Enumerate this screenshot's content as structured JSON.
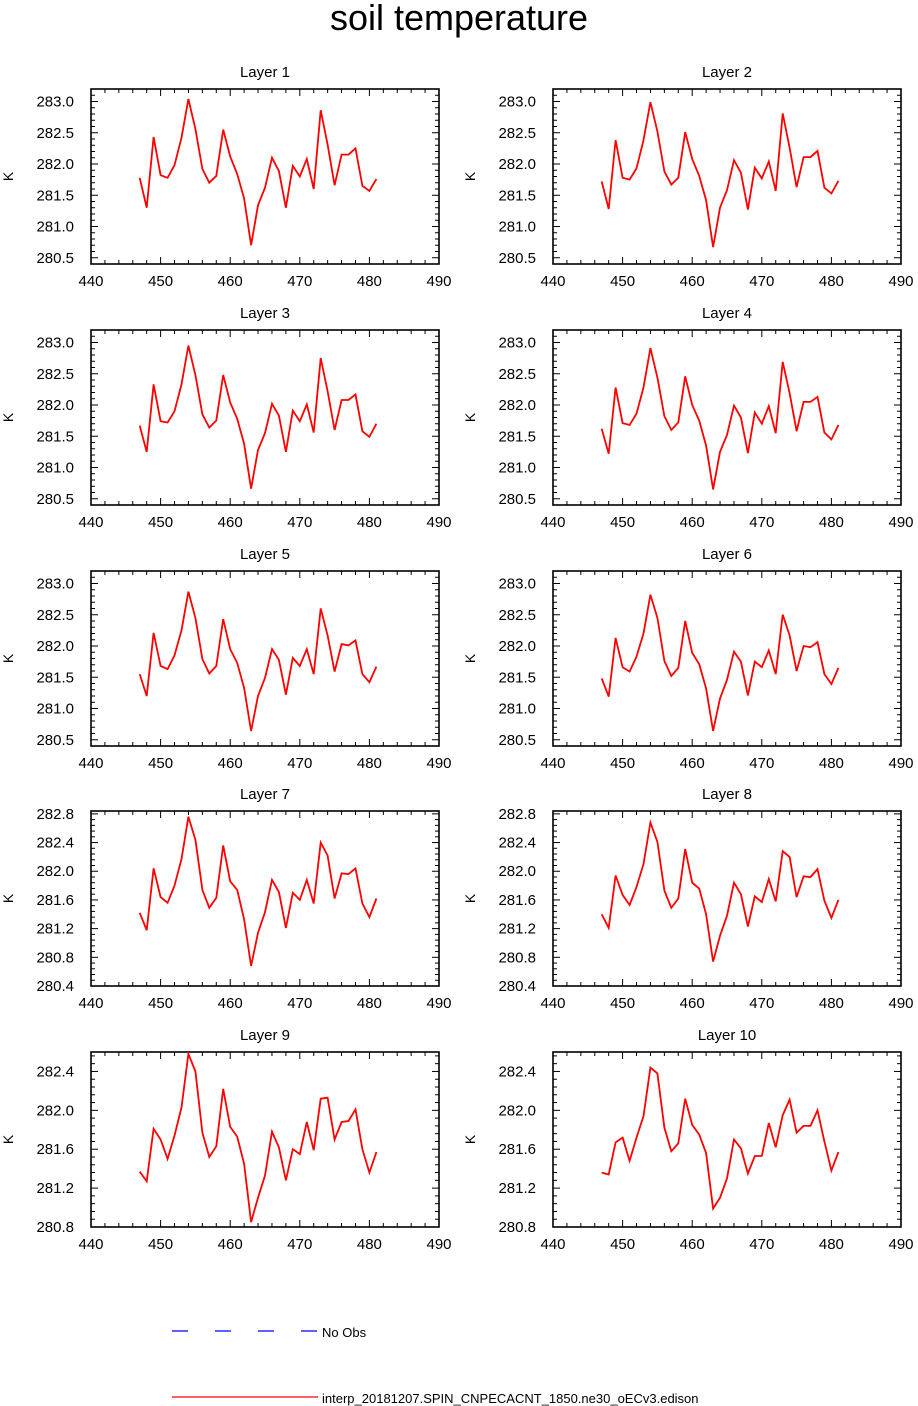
{
  "title": "soil temperature",
  "colors": {
    "model": "#ff0000",
    "obs": "#0000ff",
    "axis": "#000000"
  },
  "legend": {
    "obs_label": "No Obs",
    "model_label": "interp_20181207.SPIN_CNPECACNT_1850.ne30_oECv3.edison"
  },
  "chart_data": [
    {
      "type": "line",
      "title": "Layer 1",
      "ylabel": "K",
      "xlim": [
        440,
        490
      ],
      "ylim": [
        280.4,
        283.2
      ],
      "xticks": [
        440,
        450,
        460,
        470,
        480,
        490
      ],
      "yticks": [
        280.5,
        281.0,
        281.5,
        282.0,
        282.5,
        283.0
      ],
      "ytick_decimals": 1,
      "x": [
        447,
        448,
        449,
        450,
        451,
        452,
        453,
        454,
        455,
        456,
        457,
        458,
        459,
        460,
        461,
        462,
        463,
        464,
        465,
        466,
        467,
        468,
        469,
        470,
        471,
        472,
        473,
        474,
        475,
        476,
        477,
        478,
        479,
        480,
        481
      ],
      "series": [
        {
          "name": "interp_20181207.SPIN_CNPECACNT_1850.ne30_oECv3.edison",
          "values": [
            281.78,
            281.3,
            282.43,
            281.82,
            281.78,
            281.98,
            282.42,
            283.04,
            282.56,
            281.92,
            281.7,
            281.81,
            282.55,
            282.12,
            281.84,
            281.45,
            280.7,
            281.34,
            281.62,
            282.1,
            281.89,
            281.3,
            281.97,
            281.8,
            282.08,
            281.6,
            282.86,
            282.31,
            281.66,
            282.15,
            282.15,
            282.25,
            281.65,
            281.57,
            281.76
          ]
        }
      ]
    },
    {
      "type": "line",
      "title": "Layer 2",
      "ylabel": "K",
      "xlim": [
        440,
        490
      ],
      "ylim": [
        280.4,
        283.2
      ],
      "xticks": [
        440,
        450,
        460,
        470,
        480,
        490
      ],
      "yticks": [
        280.5,
        281.0,
        281.5,
        282.0,
        282.5,
        283.0
      ],
      "ytick_decimals": 1,
      "x": [
        447,
        448,
        449,
        450,
        451,
        452,
        453,
        454,
        455,
        456,
        457,
        458,
        459,
        460,
        461,
        462,
        463,
        464,
        465,
        466,
        467,
        468,
        469,
        470,
        471,
        472,
        473,
        474,
        475,
        476,
        477,
        478,
        479,
        480,
        481
      ],
      "series": [
        {
          "name": "interp_20181207.SPIN_CNPECACNT_1850.ne30_oECv3.edison",
          "values": [
            281.72,
            281.28,
            282.38,
            281.78,
            281.75,
            281.93,
            282.38,
            282.99,
            282.52,
            281.88,
            281.67,
            281.78,
            282.51,
            282.08,
            281.81,
            281.42,
            280.67,
            281.3,
            281.58,
            282.06,
            281.86,
            281.27,
            281.94,
            281.77,
            282.04,
            281.57,
            282.81,
            282.26,
            281.63,
            282.11,
            282.11,
            282.21,
            281.62,
            281.53,
            281.73
          ]
        }
      ]
    },
    {
      "type": "line",
      "title": "Layer 3",
      "ylabel": "K",
      "xlim": [
        440,
        490
      ],
      "ylim": [
        280.4,
        283.2
      ],
      "xticks": [
        440,
        450,
        460,
        470,
        480,
        490
      ],
      "yticks": [
        280.5,
        281.0,
        281.5,
        282.0,
        282.5,
        283.0
      ],
      "ytick_decimals": 1,
      "x": [
        447,
        448,
        449,
        450,
        451,
        452,
        453,
        454,
        455,
        456,
        457,
        458,
        459,
        460,
        461,
        462,
        463,
        464,
        465,
        466,
        467,
        468,
        469,
        470,
        471,
        472,
        473,
        474,
        475,
        476,
        477,
        478,
        479,
        480,
        481
      ],
      "series": [
        {
          "name": "interp_20181207.SPIN_CNPECACNT_1850.ne30_oECv3.edison",
          "values": [
            281.67,
            281.25,
            282.33,
            281.74,
            281.72,
            281.9,
            282.33,
            282.95,
            282.48,
            281.85,
            281.64,
            281.75,
            282.48,
            282.04,
            281.78,
            281.38,
            280.66,
            281.28,
            281.55,
            282.02,
            281.83,
            281.25,
            281.91,
            281.74,
            282.01,
            281.56,
            282.75,
            282.22,
            281.6,
            282.08,
            282.08,
            282.17,
            281.58,
            281.49,
            281.7
          ]
        }
      ]
    },
    {
      "type": "line",
      "title": "Layer 4",
      "ylabel": "K",
      "xlim": [
        440,
        490
      ],
      "ylim": [
        280.4,
        283.2
      ],
      "xticks": [
        440,
        450,
        460,
        470,
        480,
        490
      ],
      "yticks": [
        280.5,
        281.0,
        281.5,
        282.0,
        282.5,
        283.0
      ],
      "ytick_decimals": 1,
      "x": [
        447,
        448,
        449,
        450,
        451,
        452,
        453,
        454,
        455,
        456,
        457,
        458,
        459,
        460,
        461,
        462,
        463,
        464,
        465,
        466,
        467,
        468,
        469,
        470,
        471,
        472,
        473,
        474,
        475,
        476,
        477,
        478,
        479,
        480,
        481
      ],
      "series": [
        {
          "name": "interp_20181207.SPIN_CNPECACNT_1850.ne30_oECv3.edison",
          "values": [
            281.62,
            281.22,
            282.28,
            281.71,
            281.68,
            281.86,
            282.28,
            282.91,
            282.44,
            281.82,
            281.6,
            281.72,
            282.46,
            282.0,
            281.75,
            281.35,
            280.65,
            281.25,
            281.52,
            281.99,
            281.8,
            281.23,
            281.88,
            281.7,
            281.98,
            281.55,
            282.69,
            282.19,
            281.58,
            282.05,
            282.05,
            282.13,
            281.56,
            281.45,
            281.68
          ]
        }
      ]
    },
    {
      "type": "line",
      "title": "Layer 5",
      "ylabel": "K",
      "xlim": [
        440,
        490
      ],
      "ylim": [
        280.4,
        283.2
      ],
      "xticks": [
        440,
        450,
        460,
        470,
        480,
        490
      ],
      "yticks": [
        280.5,
        281.0,
        281.5,
        282.0,
        282.5,
        283.0
      ],
      "ytick_decimals": 1,
      "x": [
        447,
        448,
        449,
        450,
        451,
        452,
        453,
        454,
        455,
        456,
        457,
        458,
        459,
        460,
        461,
        462,
        463,
        464,
        465,
        466,
        467,
        468,
        469,
        470,
        471,
        472,
        473,
        474,
        475,
        476,
        477,
        478,
        479,
        480,
        481
      ],
      "series": [
        {
          "name": "interp_20181207.SPIN_CNPECACNT_1850.ne30_oECv3.edison",
          "values": [
            281.55,
            281.2,
            282.21,
            281.68,
            281.63,
            281.85,
            282.25,
            282.87,
            282.45,
            281.79,
            281.56,
            281.68,
            282.43,
            281.95,
            281.73,
            281.33,
            280.64,
            281.2,
            281.49,
            281.95,
            281.78,
            281.22,
            281.81,
            281.68,
            281.95,
            281.55,
            282.6,
            282.17,
            281.59,
            282.03,
            282.01,
            282.09,
            281.55,
            281.42,
            281.67
          ]
        }
      ]
    },
    {
      "type": "line",
      "title": "Layer 6",
      "ylabel": "K",
      "xlim": [
        440,
        490
      ],
      "ylim": [
        280.4,
        283.2
      ],
      "xticks": [
        440,
        450,
        460,
        470,
        480,
        490
      ],
      "yticks": [
        280.5,
        281.0,
        281.5,
        282.0,
        282.5,
        283.0
      ],
      "ytick_decimals": 1,
      "x": [
        447,
        448,
        449,
        450,
        451,
        452,
        453,
        454,
        455,
        456,
        457,
        458,
        459,
        460,
        461,
        462,
        463,
        464,
        465,
        466,
        467,
        468,
        469,
        470,
        471,
        472,
        473,
        474,
        475,
        476,
        477,
        478,
        479,
        480,
        481
      ],
      "series": [
        {
          "name": "interp_20181207.SPIN_CNPECACNT_1850.ne30_oECv3.edison",
          "values": [
            281.48,
            281.19,
            282.13,
            281.66,
            281.59,
            281.83,
            282.2,
            282.82,
            282.45,
            281.76,
            281.52,
            281.65,
            282.4,
            281.89,
            281.71,
            281.32,
            280.64,
            281.16,
            281.46,
            281.91,
            281.75,
            281.21,
            281.75,
            281.66,
            281.93,
            281.55,
            282.5,
            282.17,
            281.6,
            282.0,
            281.98,
            282.06,
            281.55,
            281.39,
            281.65
          ]
        }
      ]
    },
    {
      "type": "line",
      "title": "Layer 7",
      "ylabel": "K",
      "xlim": [
        440,
        490
      ],
      "ylim": [
        280.4,
        282.84
      ],
      "xticks": [
        440,
        450,
        460,
        470,
        480,
        490
      ],
      "yticks": [
        280.4,
        280.8,
        281.2,
        281.6,
        282.0,
        282.4,
        282.8
      ],
      "ytick_decimals": 1,
      "x": [
        447,
        448,
        449,
        450,
        451,
        452,
        453,
        454,
        455,
        456,
        457,
        458,
        459,
        460,
        461,
        462,
        463,
        464,
        465,
        466,
        467,
        468,
        469,
        470,
        471,
        472,
        473,
        474,
        475,
        476,
        477,
        478,
        479,
        480,
        481
      ],
      "series": [
        {
          "name": "interp_20181207.SPIN_CNPECACNT_1850.ne30_oECv3.edison",
          "values": [
            281.42,
            281.18,
            282.04,
            281.64,
            281.56,
            281.8,
            282.17,
            282.76,
            282.44,
            281.74,
            281.49,
            281.63,
            282.36,
            281.86,
            281.74,
            281.33,
            280.68,
            281.14,
            281.43,
            281.88,
            281.71,
            281.21,
            281.7,
            281.6,
            281.88,
            281.55,
            282.4,
            282.22,
            281.62,
            281.97,
            281.96,
            282.04,
            281.55,
            281.36,
            281.62
          ]
        }
      ]
    },
    {
      "type": "line",
      "title": "Layer 8",
      "ylabel": "K",
      "xlim": [
        440,
        490
      ],
      "ylim": [
        280.4,
        282.84
      ],
      "xticks": [
        440,
        450,
        460,
        470,
        480,
        490
      ],
      "yticks": [
        280.4,
        280.8,
        281.2,
        281.6,
        282.0,
        282.4,
        282.8
      ],
      "ytick_decimals": 1,
      "x": [
        447,
        448,
        449,
        450,
        451,
        452,
        453,
        454,
        455,
        456,
        457,
        458,
        459,
        460,
        461,
        462,
        463,
        464,
        465,
        466,
        467,
        468,
        469,
        470,
        471,
        472,
        473,
        474,
        475,
        476,
        477,
        478,
        479,
        480,
        481
      ],
      "series": [
        {
          "name": "interp_20181207.SPIN_CNPECACNT_1850.ne30_oECv3.edison",
          "values": [
            281.4,
            281.21,
            281.94,
            281.67,
            281.53,
            281.78,
            282.1,
            282.68,
            282.41,
            281.73,
            281.49,
            281.62,
            282.31,
            281.84,
            281.76,
            281.4,
            280.74,
            281.1,
            281.38,
            281.84,
            281.68,
            281.23,
            281.65,
            281.57,
            281.89,
            281.58,
            282.28,
            282.2,
            281.64,
            281.93,
            281.92,
            282.03,
            281.59,
            281.35,
            281.6
          ]
        }
      ]
    },
    {
      "type": "line",
      "title": "Layer 9",
      "ylabel": "K",
      "xlim": [
        440,
        490
      ],
      "ylim": [
        280.8,
        282.6
      ],
      "xticks": [
        440,
        450,
        460,
        470,
        480,
        490
      ],
      "yticks": [
        280.8,
        281.2,
        281.6,
        282.0,
        282.4
      ],
      "ytick_decimals": 1,
      "x": [
        447,
        448,
        449,
        450,
        451,
        452,
        453,
        454,
        455,
        456,
        457,
        458,
        459,
        460,
        461,
        462,
        463,
        464,
        465,
        466,
        467,
        468,
        469,
        470,
        471,
        472,
        473,
        474,
        475,
        476,
        477,
        478,
        479,
        480,
        481
      ],
      "series": [
        {
          "name": "interp_20181207.SPIN_CNPECACNT_1850.ne30_oECv3.edison",
          "values": [
            281.37,
            281.27,
            281.81,
            281.7,
            281.5,
            281.74,
            282.03,
            282.58,
            282.4,
            281.77,
            281.52,
            281.63,
            282.22,
            281.83,
            281.73,
            281.45,
            280.85,
            281.1,
            281.33,
            281.78,
            281.62,
            281.28,
            281.6,
            281.55,
            281.88,
            281.59,
            282.12,
            282.13,
            281.7,
            281.88,
            281.89,
            282.01,
            281.6,
            281.36,
            281.57
          ]
        }
      ]
    },
    {
      "type": "line",
      "title": "Layer 10",
      "ylabel": "K",
      "xlim": [
        440,
        490
      ],
      "ylim": [
        280.8,
        282.6
      ],
      "xticks": [
        440,
        450,
        460,
        470,
        480,
        490
      ],
      "yticks": [
        280.8,
        281.2,
        281.6,
        282.0,
        282.4
      ],
      "ytick_decimals": 1,
      "x": [
        447,
        448,
        449,
        450,
        451,
        452,
        453,
        454,
        455,
        456,
        457,
        458,
        459,
        460,
        461,
        462,
        463,
        464,
        465,
        466,
        467,
        468,
        469,
        470,
        471,
        472,
        473,
        474,
        475,
        476,
        477,
        478,
        479,
        480,
        481
      ],
      "series": [
        {
          "name": "interp_20181207.SPIN_CNPECACNT_1850.ne30_oECv3.edison",
          "values": [
            281.36,
            281.34,
            281.67,
            281.72,
            281.48,
            281.72,
            281.94,
            282.44,
            282.38,
            281.82,
            281.58,
            281.66,
            282.12,
            281.85,
            281.75,
            281.56,
            280.99,
            281.1,
            281.3,
            281.7,
            281.61,
            281.35,
            281.53,
            281.53,
            281.87,
            281.62,
            281.95,
            282.11,
            281.77,
            281.84,
            281.84,
            282.0,
            281.68,
            281.38,
            281.57
          ]
        }
      ]
    }
  ]
}
